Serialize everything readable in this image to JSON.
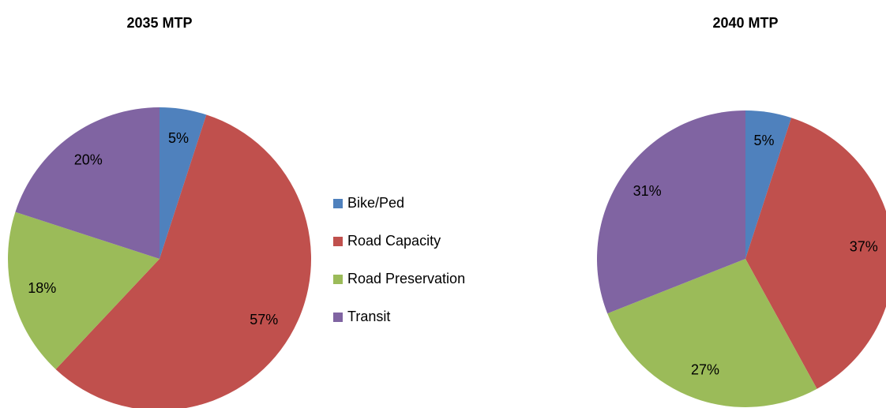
{
  "chart_data": [
    {
      "type": "pie",
      "title": "2035 MTP",
      "categories": [
        "Bike/Ped",
        "Road Capacity",
        "Road Preservation",
        "Transit"
      ],
      "values": [
        5,
        57,
        18,
        20
      ],
      "value_labels": [
        "5%",
        "57%",
        "18%",
        "20%"
      ],
      "colors": [
        "#4f81bd",
        "#c0504d",
        "#9bbb59",
        "#8064a2"
      ]
    },
    {
      "type": "pie",
      "title": "2040 MTP",
      "values": [
        5,
        37,
        27,
        31
      ],
      "value_labels": [
        "5%",
        "37%",
        "27%",
        "31%"
      ],
      "colors": [
        "#4f81bd",
        "#c0504d",
        "#9bbb59",
        "#8064a2"
      ]
    }
  ]
}
